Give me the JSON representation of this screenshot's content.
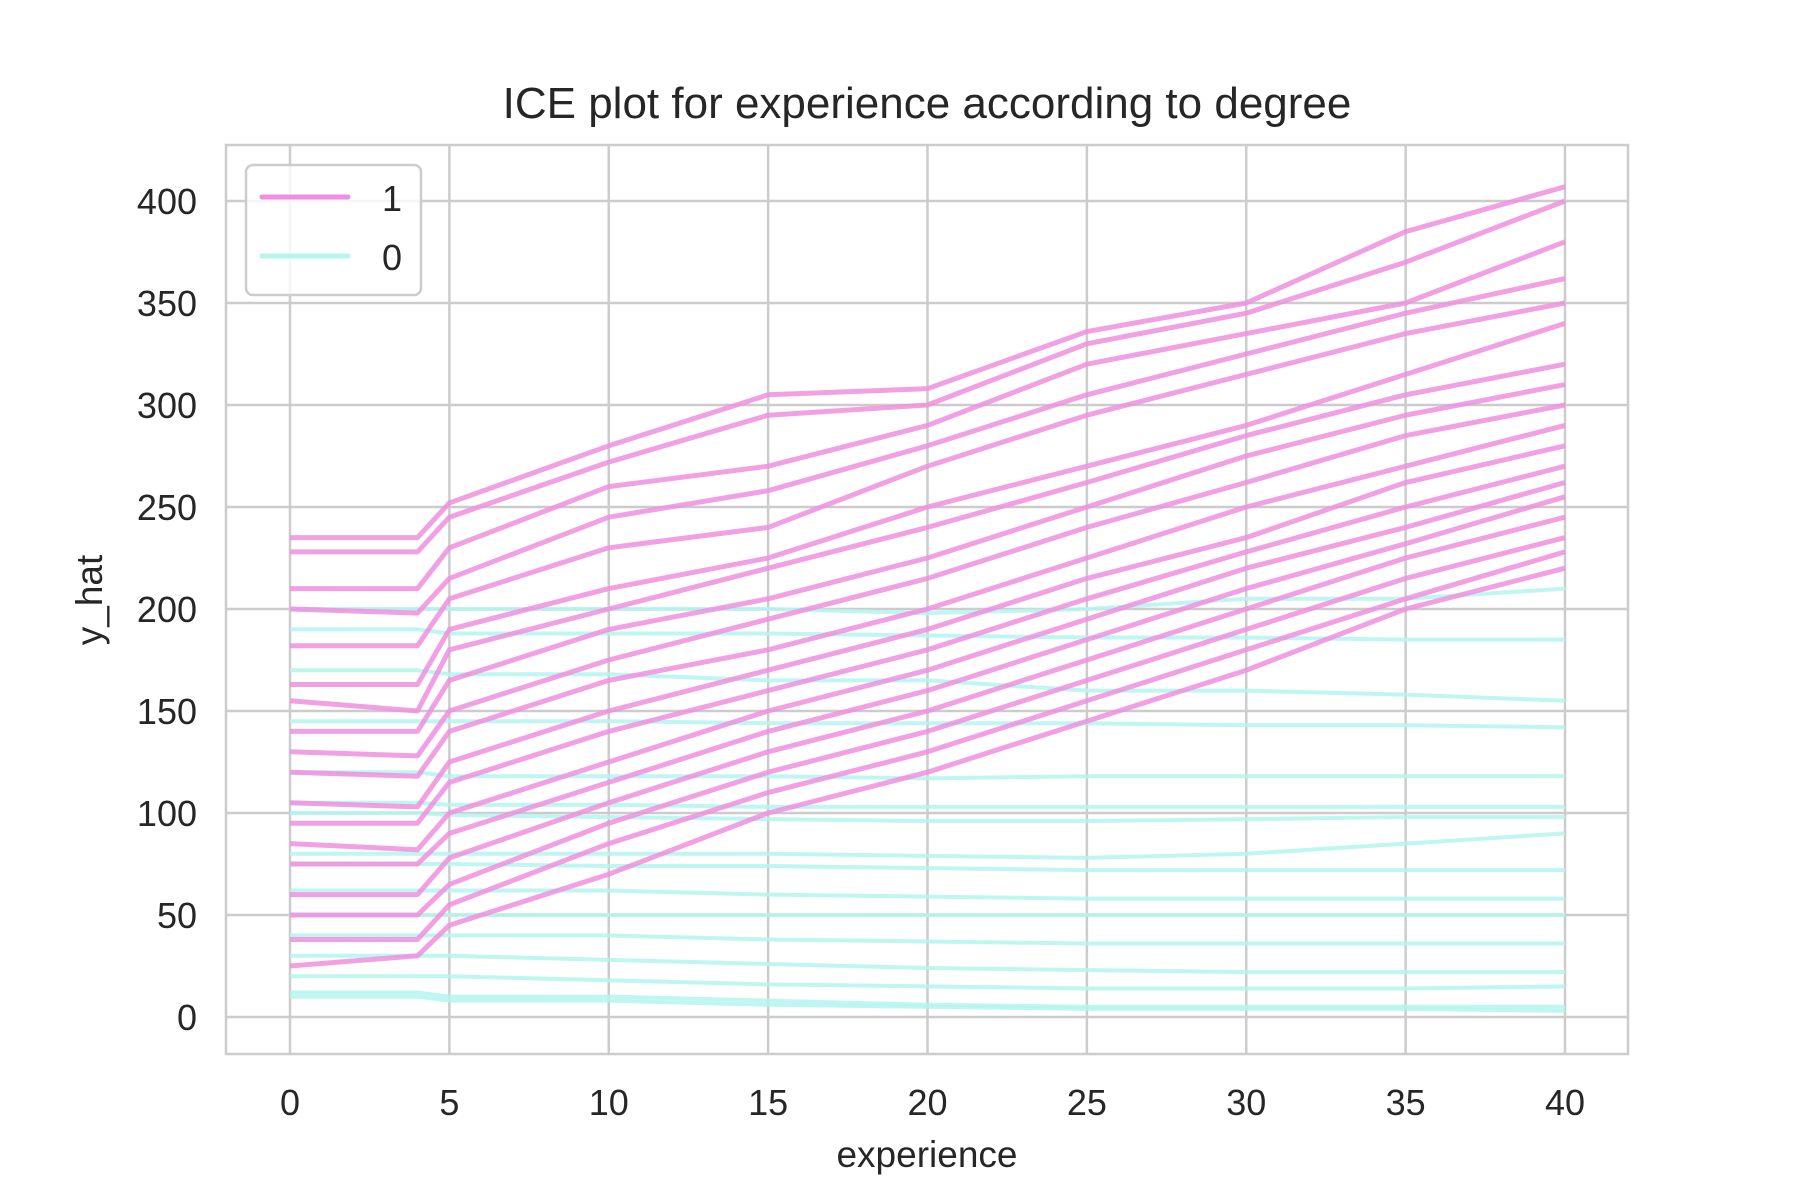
{
  "chart_data": {
    "type": "line",
    "title": "ICE plot for experience according to degree",
    "xlabel": "experience",
    "ylabel": "y_hat",
    "xlim": [
      -2,
      42
    ],
    "ylim": [
      -18,
      426
    ],
    "xticks": [
      "0",
      "5",
      "10",
      "15",
      "20",
      "25",
      "30",
      "35",
      "40"
    ],
    "yticks": [
      "0",
      "50",
      "100",
      "150",
      "200",
      "250",
      "300",
      "350",
      "400"
    ],
    "grid": true,
    "legend_placement": "top-left",
    "x": [
      0,
      4,
      5,
      10,
      15,
      20,
      25,
      30,
      35,
      40
    ],
    "series": [
      {
        "name": "1",
        "color": "#ee8fdf",
        "lines": [
          [
            235,
            235,
            252,
            280,
            305,
            308,
            336,
            350,
            385,
            407
          ],
          [
            228,
            228,
            245,
            272,
            295,
            300,
            330,
            345,
            370,
            400
          ],
          [
            210,
            210,
            230,
            260,
            270,
            290,
            320,
            335,
            350,
            380
          ],
          [
            200,
            198,
            215,
            245,
            258,
            280,
            305,
            325,
            345,
            362
          ],
          [
            182,
            182,
            205,
            230,
            240,
            270,
            295,
            315,
            335,
            350
          ],
          [
            163,
            163,
            190,
            210,
            225,
            250,
            270,
            290,
            315,
            340
          ],
          [
            155,
            150,
            180,
            200,
            220,
            240,
            262,
            285,
            305,
            320
          ],
          [
            140,
            140,
            165,
            190,
            205,
            225,
            250,
            275,
            295,
            310
          ],
          [
            130,
            128,
            150,
            175,
            195,
            215,
            240,
            262,
            285,
            300
          ],
          [
            120,
            118,
            140,
            165,
            180,
            200,
            225,
            250,
            270,
            290
          ],
          [
            105,
            103,
            125,
            150,
            170,
            190,
            215,
            235,
            262,
            280
          ],
          [
            95,
            95,
            115,
            140,
            160,
            180,
            205,
            228,
            250,
            270
          ],
          [
            85,
            82,
            100,
            125,
            150,
            170,
            195,
            220,
            240,
            262
          ],
          [
            75,
            75,
            90,
            115,
            140,
            160,
            185,
            210,
            232,
            255
          ],
          [
            60,
            60,
            78,
            105,
            130,
            150,
            175,
            200,
            225,
            245
          ],
          [
            50,
            50,
            65,
            95,
            120,
            140,
            165,
            190,
            215,
            235
          ],
          [
            38,
            38,
            55,
            85,
            110,
            130,
            155,
            180,
            205,
            228
          ],
          [
            25,
            30,
            45,
            70,
            100,
            120,
            145,
            170,
            200,
            220
          ]
        ]
      },
      {
        "name": "0",
        "color": "#b3f5ef",
        "lines": [
          [
            200,
            200,
            200,
            200,
            200,
            198,
            200,
            205,
            205,
            210
          ],
          [
            190,
            190,
            188,
            188,
            188,
            187,
            186,
            186,
            185,
            185
          ],
          [
            170,
            170,
            168,
            168,
            165,
            165,
            160,
            160,
            158,
            155
          ],
          [
            145,
            145,
            145,
            145,
            144,
            144,
            144,
            143,
            143,
            142
          ],
          [
            120,
            120,
            118,
            118,
            118,
            117,
            118,
            118,
            118,
            118
          ],
          [
            105,
            105,
            104,
            104,
            103,
            103,
            103,
            103,
            103,
            103
          ],
          [
            100,
            100,
            99,
            98,
            97,
            96,
            96,
            97,
            98,
            98
          ],
          [
            80,
            80,
            80,
            80,
            80,
            79,
            78,
            80,
            85,
            90
          ],
          [
            75,
            75,
            75,
            74,
            74,
            73,
            72,
            72,
            72,
            72
          ],
          [
            62,
            62,
            62,
            62,
            60,
            59,
            58,
            58,
            58,
            58
          ],
          [
            50,
            50,
            50,
            50,
            50,
            50,
            50,
            50,
            50,
            50
          ],
          [
            40,
            40,
            40,
            40,
            38,
            37,
            36,
            36,
            36,
            36
          ],
          [
            30,
            30,
            30,
            28,
            26,
            24,
            23,
            22,
            22,
            22
          ],
          [
            20,
            20,
            20,
            18,
            16,
            15,
            14,
            14,
            14,
            15
          ],
          [
            12,
            12,
            10,
            10,
            8,
            6,
            5,
            5,
            5,
            5
          ],
          [
            10,
            10,
            8,
            8,
            6,
            5,
            4,
            4,
            4,
            3
          ]
        ]
      }
    ]
  }
}
